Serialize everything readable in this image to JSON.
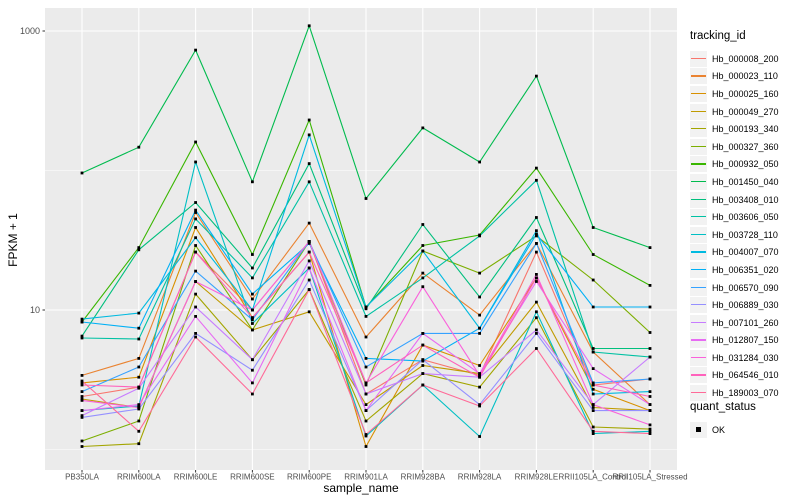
{
  "chart_data": {
    "type": "line",
    "title": "",
    "xlabel": "sample_name",
    "ylabel": "FPKM + 1",
    "y_scale": "log10",
    "ylim_log10": [
      -0.15,
      3.17
    ],
    "grid": true,
    "legend_position": "right",
    "y_ticks": [
      {
        "label": "1000",
        "value": 1000
      },
      {
        "label": "10",
        "value": 10
      }
    ],
    "y_minor": [
      100,
      1
    ],
    "legend_title": "tracking_id",
    "quant_legend": {
      "title": "quant_status",
      "items": [
        {
          "label": "OK",
          "marker": "black-square"
        }
      ]
    },
    "categories": [
      "PB350LA",
      "RRIM600LA",
      "RRIM600LE",
      "RRIM600SE",
      "RRIM600PE",
      "RRIM901LA",
      "RRIM928BA",
      "RRIM928LA",
      "RRIM928LE",
      "RRII105LA_Control",
      "RRII105LA_Stressed"
    ],
    "series": [
      {
        "name": "Hb_000008_200",
        "color": "#F8766D",
        "values": [
          2.4,
          2.8,
          26,
          10,
          31,
          2.5,
          4.4,
          3.4,
          26,
          2.9,
          3.2
        ]
      },
      {
        "name": "Hb_000023_110",
        "color": "#EA8331",
        "values": [
          3.4,
          4.5,
          50,
          12,
          42,
          6.4,
          18.4,
          9.2,
          30,
          5.0,
          2.1
        ]
      },
      {
        "name": "Hb_000025_160",
        "color": "#D89000",
        "values": [
          3.0,
          3.3,
          39,
          8.8,
          26,
          1.05,
          5.6,
          4.0,
          17,
          2.7,
          1.9
        ]
      },
      {
        "name": "Hb_000049_270",
        "color": "#C09B00",
        "values": [
          2.3,
          2.0,
          16,
          7.2,
          9.7,
          2.1,
          4.0,
          3.5,
          11.4,
          2.0,
          1.9
        ]
      },
      {
        "name": "Hb_000193_340",
        "color": "#A3A500",
        "values": [
          1.05,
          1.1,
          13,
          4.4,
          14,
          1.6,
          3.5,
          2.8,
          8.8,
          1.45,
          1.4
        ]
      },
      {
        "name": "Hb_000327_360",
        "color": "#7CAE00",
        "values": [
          1.15,
          1.6,
          29,
          7.2,
          31,
          2.9,
          26.5,
          18.4,
          34,
          16.4,
          6.9
        ]
      },
      {
        "name": "Hb_000932_050",
        "color": "#39B600",
        "values": [
          8.2,
          28,
          160,
          25,
          230,
          10.5,
          29,
          34.5,
          104,
          25,
          15
        ]
      },
      {
        "name": "Hb_001450_040",
        "color": "#00BB4E",
        "values": [
          96,
          147,
          730,
          83,
          1090,
          63,
          202,
          115,
          475,
          39,
          28
        ]
      },
      {
        "name": "Hb_003408_010",
        "color": "#00BF7D",
        "values": [
          6.5,
          27,
          59,
          20,
          112,
          10.2,
          41,
          12.4,
          46,
          5.3,
          5.3
        ]
      },
      {
        "name": "Hb_003606_050",
        "color": "#00C1A3",
        "values": [
          6.3,
          6.2,
          45,
          17,
          83,
          9.0,
          17,
          34,
          85,
          5.0,
          4.6
        ]
      },
      {
        "name": "Hb_003728_110",
        "color": "#00BFC4",
        "values": [
          1.9,
          2.05,
          115,
          8.0,
          20,
          1.25,
          2.9,
          1.24,
          9.7,
          1.3,
          1.35
        ]
      },
      {
        "name": "Hb_004007_070",
        "color": "#00BAE0",
        "values": [
          8.6,
          9.5,
          33,
          10,
          180,
          10.5,
          26.5,
          7.4,
          37,
          2.5,
          2.6
        ]
      },
      {
        "name": "Hb_006351_020",
        "color": "#00B0F6",
        "values": [
          8.2,
          7.4,
          52,
          13,
          30,
          4.5,
          4.3,
          7.4,
          35,
          10.5,
          10.5
        ]
      },
      {
        "name": "Hb_006570_090",
        "color": "#35A2FF",
        "values": [
          2.6,
          3.9,
          19,
          8.5,
          31,
          3.9,
          6.8,
          6.8,
          30,
          3.0,
          3.2
        ]
      },
      {
        "name": "Hb_006889_030",
        "color": "#9590FF",
        "values": [
          1.7,
          1.95,
          6.8,
          3.7,
          16.4,
          1.9,
          4.4,
          2.1,
          6.8,
          1.9,
          1.9
        ]
      },
      {
        "name": "Hb_007101_260",
        "color": "#C77CFF",
        "values": [
          1.75,
          2.75,
          10.5,
          4.4,
          22.5,
          2.5,
          3.5,
          3.3,
          7.2,
          2.1,
          4.6
        ]
      },
      {
        "name": "Hb_012807_150",
        "color": "#E76BF3",
        "values": [
          1.9,
          2.1,
          9.0,
          3.0,
          20,
          1.9,
          6.8,
          3.5,
          16,
          3.8,
          2.1
        ]
      },
      {
        "name": "Hb_031284_030",
        "color": "#FA62DB",
        "values": [
          2.25,
          2.0,
          16,
          10,
          31,
          3.0,
          14.7,
          3.4,
          18,
          2.1,
          1.5
        ]
      },
      {
        "name": "Hb_064546_010",
        "color": "#FF62BC",
        "values": [
          2.9,
          2.8,
          26,
          8.8,
          26,
          3.0,
          5.6,
          3.3,
          17,
          2.9,
          2.4
        ]
      },
      {
        "name": "Hb_189003_070",
        "color": "#FF6A98",
        "values": [
          3.1,
          1.35,
          6.4,
          2.5,
          14,
          1.28,
          2.9,
          2.05,
          5.3,
          1.35,
          1.3
        ]
      }
    ]
  },
  "colors": {
    "page_bg": "#FFFFFF",
    "panel_bg": "#EBEBEB",
    "grid": "#FFFFFF",
    "point": "#000000",
    "tick_text": "#4D4D4D",
    "tick_mark": "#333333",
    "key_bg": "#F2F2F2"
  }
}
